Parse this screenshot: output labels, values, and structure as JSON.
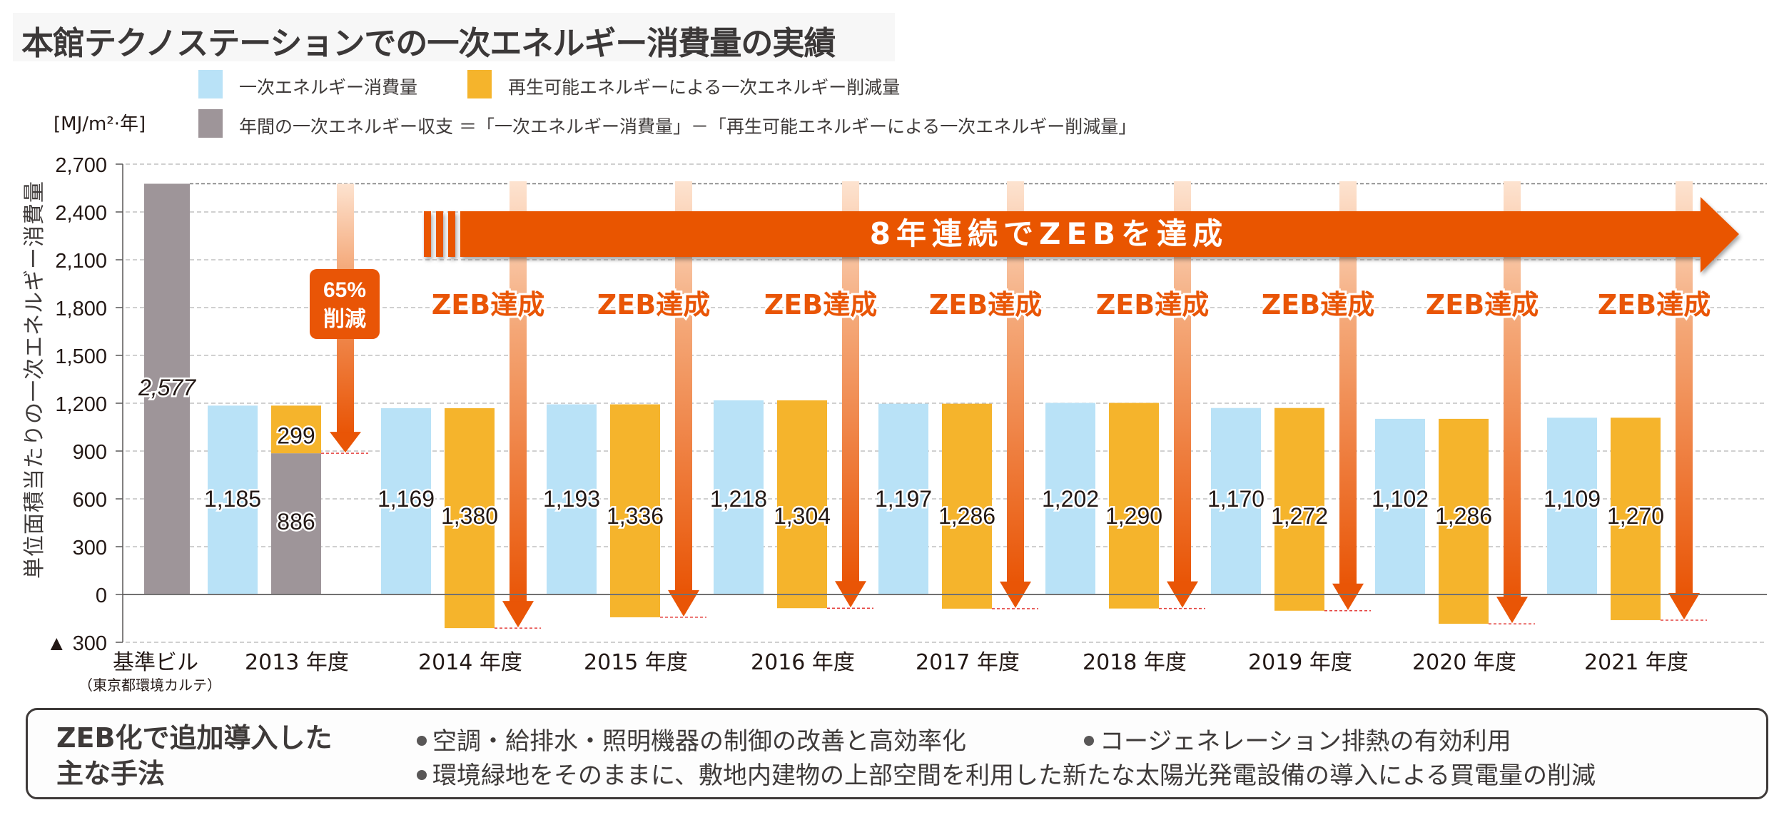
{
  "title": "本館テクノステーションでの一次エネルギー消費量の実績",
  "unit_label": "[MJ/m²·年]",
  "legend": [
    {
      "label": "一次エネルギー消費量",
      "color": "#b9e2f7"
    },
    {
      "label": "再生可能エネルギーによる一次エネルギー削減量",
      "color": "#f5b42c"
    },
    {
      "label": "年間の一次エネルギー収支 ＝「一次エネルギー消費量」－「再生可能エネルギーによる一次エネルギー削減量」",
      "color": "#9e9599"
    }
  ],
  "colors": {
    "consumption": "#b9e2f7",
    "reduction": "#f5b42c",
    "balance": "#9e9599",
    "accent": "#e95506",
    "gridline": "#b5b5b5",
    "balance_line": "#e4413e"
  },
  "banner": {
    "text": "8年連続でZEBを達成"
  },
  "reduction_badge": {
    "line1": "65%",
    "line2": "削減"
  },
  "zeb_label": "ZEB達成",
  "methods": {
    "title_line1": "ZEB化で追加導入した",
    "title_line2": "主な手法",
    "items": [
      "空調・給排水・照明機器の制御の改善と高効率化",
      "コージェネレーション排熱の有効利用",
      "環境緑地をそのままに、敷地内建物の上部空間を利用した新たな太陽光発電設備の導入による買電量の削減"
    ]
  },
  "chart_data": {
    "type": "bar",
    "title": "本館テクノステーションでの一次エネルギー消費量の実績",
    "ylabel": "単位面積当たりの一次エネルギー消費量",
    "unit": "MJ/m²·年",
    "ylim": [
      -300,
      2700
    ],
    "yticks": [
      2700,
      2400,
      2100,
      1800,
      1500,
      1200,
      900,
      600,
      300,
      0,
      -300
    ],
    "ytick_labels": [
      "2,700",
      "2,400",
      "2,100",
      "1,800",
      "1,500",
      "1,200",
      "900",
      "600",
      "300",
      "0",
      "▲ 300"
    ],
    "grid": true,
    "legend_position": "top",
    "baseline": {
      "category": "基準ビル",
      "sublabel": "（東京都環境カルテ）",
      "value": 2577,
      "label": "2,577"
    },
    "categories": [
      "2013 年度",
      "2014 年度",
      "2015 年度",
      "2016 年度",
      "2017 年度",
      "2018 年度",
      "2019 年度",
      "2020 年度",
      "2021 年度"
    ],
    "series": [
      {
        "name": "一次エネルギー消費量",
        "values": [
          1185,
          1169,
          1193,
          1218,
          1197,
          1202,
          1170,
          1102,
          1109
        ],
        "labels": [
          "1,185",
          "1,169",
          "1,193",
          "1,218",
          "1,197",
          "1,202",
          "1,170",
          "1,102",
          "1,109"
        ]
      },
      {
        "name": "再生可能エネルギーによる一次エネルギー削減量",
        "values": [
          299,
          1380,
          1336,
          1304,
          1286,
          1290,
          1272,
          1286,
          1270
        ],
        "labels": [
          "299",
          "1,380",
          "1,336",
          "1,304",
          "1,286",
          "1,290",
          "1,272",
          "1,286",
          "1,270"
        ]
      },
      {
        "name": "年間の一次エネルギー収支",
        "values": [
          886,
          -211,
          -143,
          -86,
          -89,
          -88,
          -102,
          -184,
          -161
        ],
        "labels": [
          "886",
          "",
          "",
          "",
          "",
          "",
          "",
          "",
          ""
        ]
      }
    ],
    "annotations": [
      {
        "category": "2013 年度",
        "text": "65% 削減"
      },
      {
        "category": "2014 年度",
        "text": "ZEB達成"
      },
      {
        "category": "2015 年度",
        "text": "ZEB達成"
      },
      {
        "category": "2016 年度",
        "text": "ZEB達成"
      },
      {
        "category": "2017 年度",
        "text": "ZEB達成"
      },
      {
        "category": "2018 年度",
        "text": "ZEB達成"
      },
      {
        "category": "2019 年度",
        "text": "ZEB達成"
      },
      {
        "category": "2020 年度",
        "text": "ZEB達成"
      },
      {
        "category": "2021 年度",
        "text": "ZEB達成"
      },
      {
        "category": "2014-2021",
        "text": "8年連続でZEBを達成"
      }
    ]
  }
}
